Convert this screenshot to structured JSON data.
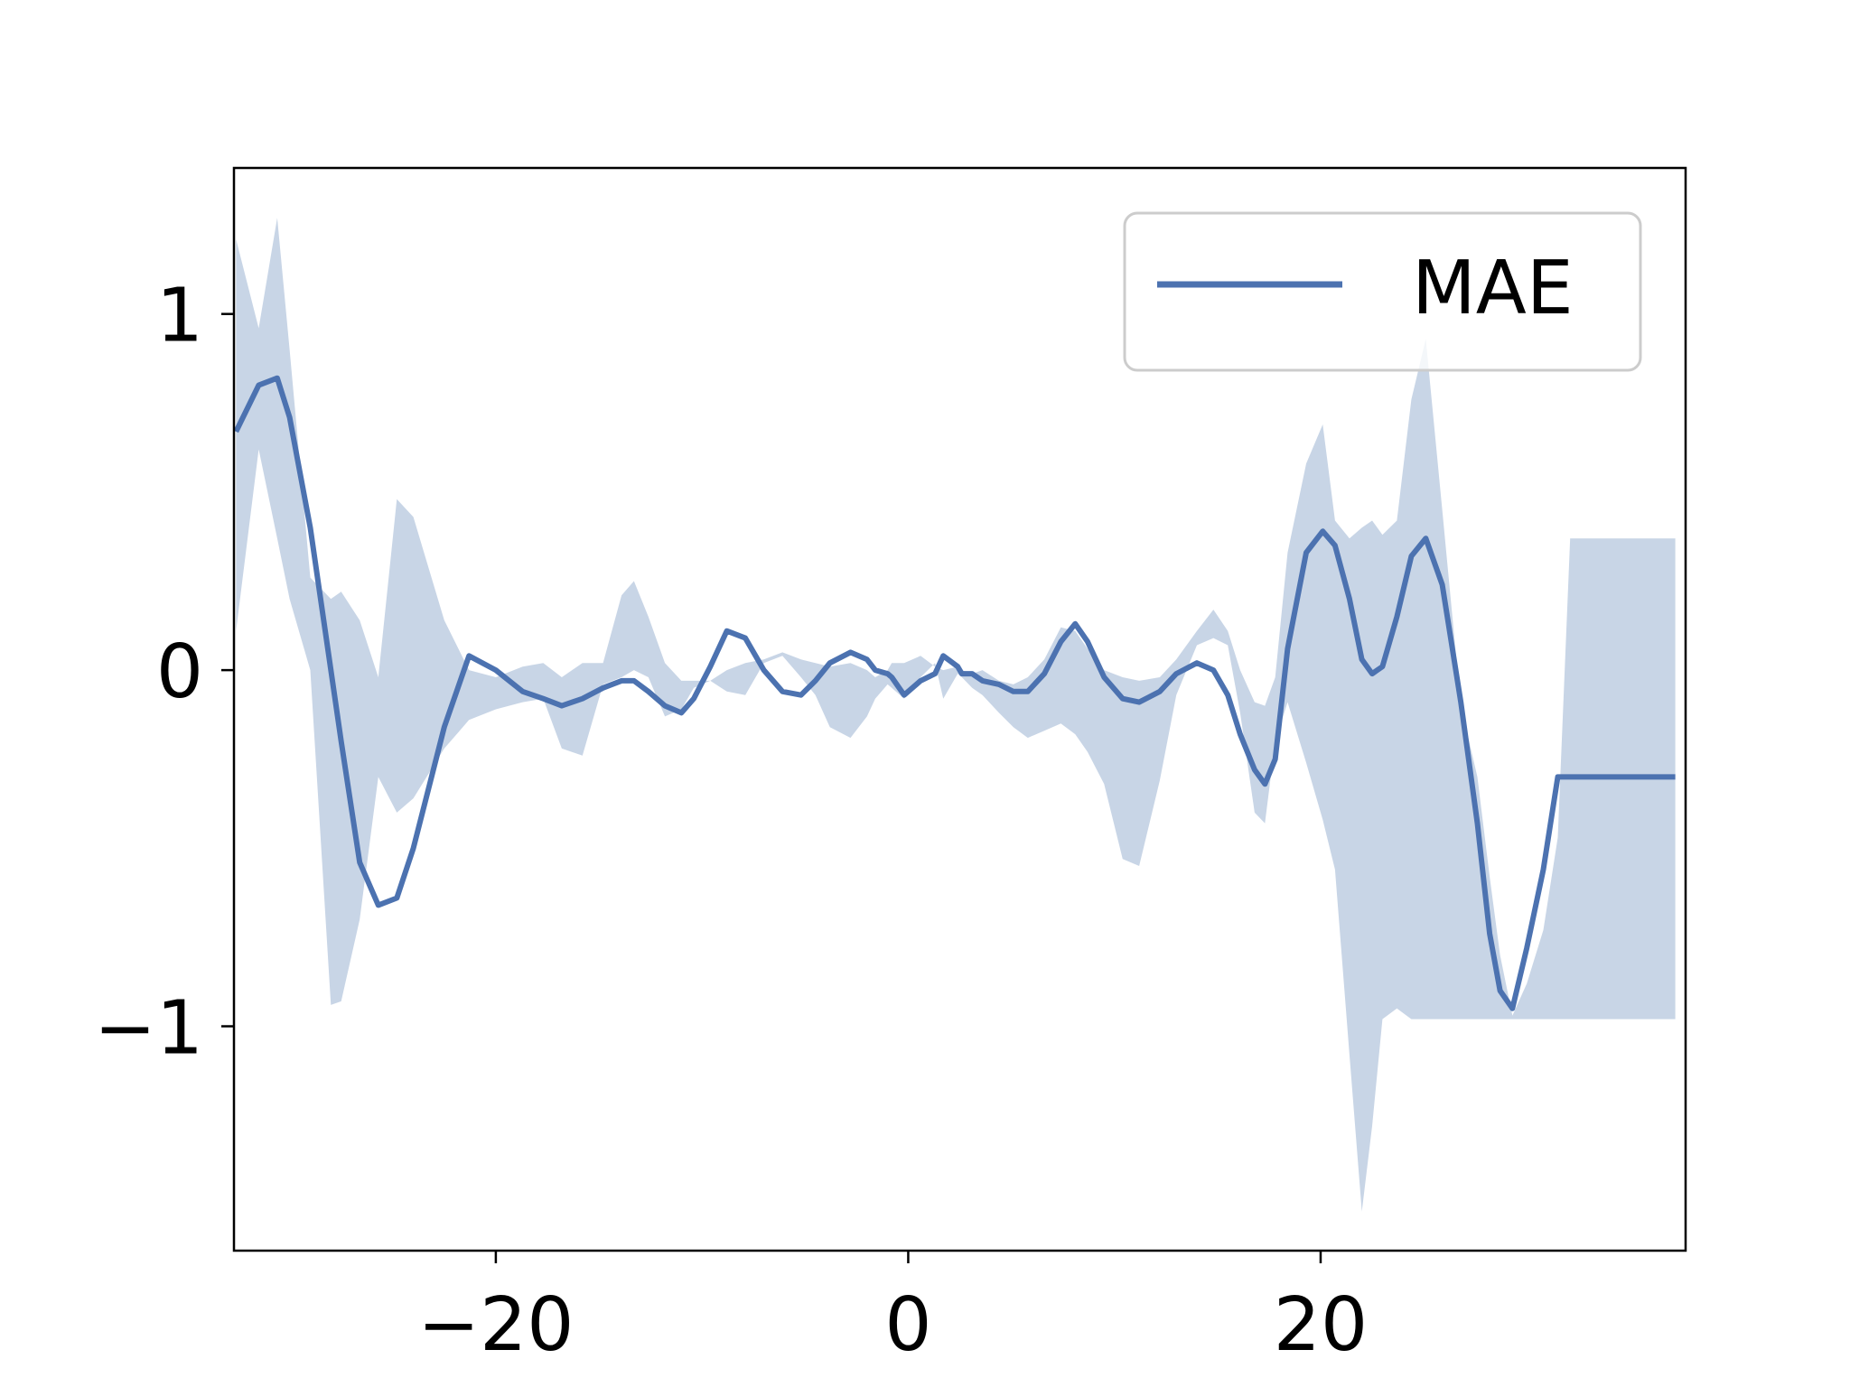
{
  "chart_data": {
    "type": "line",
    "title": "",
    "xlabel": "",
    "ylabel": "",
    "xlim": [
      -32.7,
      37.7
    ],
    "ylim": [
      -1.63,
      1.41
    ],
    "grid": false,
    "legend_position": "top-right",
    "xticks": [
      {
        "value": -20,
        "label": "−20"
      },
      {
        "value": 0,
        "label": "0"
      },
      {
        "value": 20,
        "label": "20"
      }
    ],
    "yticks": [
      {
        "value": 1,
        "label": "1"
      },
      {
        "value": 0,
        "label": "0"
      },
      {
        "value": -1,
        "label": "−1"
      }
    ],
    "series": [
      {
        "name": "MAE",
        "color": "#4c72b0",
        "band_color": "#c8d5e6",
        "x": [
          -32.6,
          -31.5,
          -30.6,
          -30.0,
          -29.0,
          -28.0,
          -27.5,
          -26.6,
          -25.7,
          -24.8,
          -24.0,
          -22.5,
          -21.3,
          -20.0,
          -18.7,
          -17.7,
          -16.8,
          -15.8,
          -14.8,
          -13.9,
          -13.3,
          -12.6,
          -11.8,
          -11.0,
          -10.4,
          -9.6,
          -8.8,
          -7.9,
          -7.0,
          -6.1,
          -5.2,
          -4.5,
          -3.8,
          -2.8,
          -2.0,
          -1.6,
          -1.0,
          -0.8,
          -0.2,
          0.6,
          1.3,
          1.7,
          2.4,
          2.6,
          3.1,
          3.6,
          4.4,
          5.1,
          5.8,
          6.6,
          7.4,
          8.1,
          8.7,
          9.5,
          10.4,
          11.2,
          12.2,
          13.0,
          14.0,
          14.8,
          15.5,
          16.1,
          16.8,
          17.3,
          17.8,
          18.4,
          19.3,
          20.1,
          20.7,
          21.4,
          22.0,
          22.5,
          23.0,
          23.7,
          24.4,
          25.1,
          25.9,
          26.8,
          27.6,
          28.2,
          28.7,
          29.3,
          30.0,
          30.8,
          31.5,
          32.1,
          32.6,
          33.2,
          33.8,
          34.5,
          35.4,
          35.9,
          36.5,
          37.2
        ],
        "y": [
          0.67,
          0.8,
          0.82,
          0.71,
          0.4,
          0.0,
          -0.2,
          -0.54,
          -0.66,
          -0.64,
          -0.5,
          -0.16,
          0.04,
          0.0,
          -0.06,
          -0.08,
          -0.1,
          -0.08,
          -0.05,
          -0.03,
          -0.03,
          -0.06,
          -0.1,
          -0.12,
          -0.08,
          0.01,
          0.11,
          0.09,
          0.0,
          -0.06,
          -0.07,
          -0.03,
          0.02,
          0.05,
          0.03,
          0.0,
          -0.01,
          -0.02,
          -0.07,
          -0.03,
          -0.01,
          0.04,
          0.01,
          -0.01,
          -0.01,
          -0.03,
          -0.04,
          -0.06,
          -0.06,
          -0.01,
          0.08,
          0.13,
          0.08,
          -0.02,
          -0.08,
          -0.09,
          -0.06,
          -0.01,
          0.02,
          0.0,
          -0.07,
          -0.18,
          -0.28,
          -0.32,
          -0.25,
          0.06,
          0.33,
          0.39,
          0.35,
          0.2,
          0.03,
          -0.01,
          0.01,
          0.15,
          0.32,
          0.37,
          0.24,
          -0.09,
          -0.43,
          -0.74,
          -0.9,
          -0.95,
          -0.78,
          -0.56,
          -0.3,
          -0.3,
          -0.3,
          -0.3,
          -0.3,
          -0.3,
          -0.3,
          -0.3,
          -0.3,
          -0.3
        ],
        "band_upper": [
          1.21,
          0.96,
          1.27,
          0.9,
          0.26,
          0.2,
          0.22,
          0.14,
          -0.02,
          0.48,
          0.43,
          0.14,
          0.0,
          -0.02,
          0.01,
          0.02,
          -0.02,
          0.02,
          0.02,
          0.21,
          0.25,
          0.15,
          0.02,
          -0.03,
          -0.03,
          -0.03,
          0.0,
          0.02,
          0.03,
          0.05,
          0.03,
          0.02,
          0.01,
          0.02,
          0.0,
          -0.02,
          0.0,
          0.02,
          0.02,
          0.04,
          0.01,
          0.0,
          0.01,
          0.0,
          -0.01,
          0.0,
          -0.03,
          -0.04,
          -0.02,
          0.03,
          0.12,
          0.11,
          0.06,
          0.0,
          -0.02,
          -0.03,
          -0.02,
          0.03,
          0.11,
          0.17,
          0.11,
          0.0,
          -0.09,
          -0.1,
          -0.02,
          0.33,
          0.58,
          0.69,
          0.42,
          0.37,
          0.4,
          0.42,
          0.38,
          0.42,
          0.76,
          0.93,
          0.45,
          -0.1,
          -0.3,
          -0.58,
          -0.8,
          -0.97,
          -0.88,
          -0.73,
          -0.47,
          0.37,
          0.37,
          0.37,
          0.37,
          0.37,
          0.37,
          0.37,
          0.37,
          0.37
        ],
        "band_lower": [
          0.11,
          0.62,
          0.37,
          0.2,
          0.0,
          -0.94,
          -0.93,
          -0.7,
          -0.3,
          -0.4,
          -0.36,
          -0.22,
          -0.14,
          -0.11,
          -0.09,
          -0.08,
          -0.22,
          -0.24,
          -0.04,
          -0.02,
          0.0,
          -0.02,
          -0.13,
          -0.11,
          -0.05,
          -0.03,
          -0.06,
          -0.07,
          0.02,
          0.04,
          -0.02,
          -0.07,
          -0.16,
          -0.19,
          -0.13,
          -0.08,
          -0.04,
          -0.05,
          -0.08,
          -0.02,
          0.02,
          -0.08,
          -0.01,
          -0.02,
          -0.05,
          -0.07,
          -0.12,
          -0.16,
          -0.19,
          -0.17,
          -0.15,
          -0.18,
          -0.23,
          -0.32,
          -0.53,
          -0.55,
          -0.31,
          -0.07,
          0.07,
          0.09,
          0.07,
          -0.12,
          -0.4,
          -0.43,
          -0.2,
          -0.09,
          -0.26,
          -0.42,
          -0.56,
          -1.08,
          -1.52,
          -1.28,
          -0.98,
          -0.95,
          -0.98,
          -0.98,
          -0.98,
          -0.98,
          -0.98,
          -0.98,
          -0.98,
          -0.98,
          -0.98,
          -0.98,
          -0.98,
          -0.98,
          -0.98,
          -0.98,
          -0.98,
          -0.98,
          -0.98,
          -0.98,
          -0.98,
          -0.98
        ]
      }
    ]
  }
}
